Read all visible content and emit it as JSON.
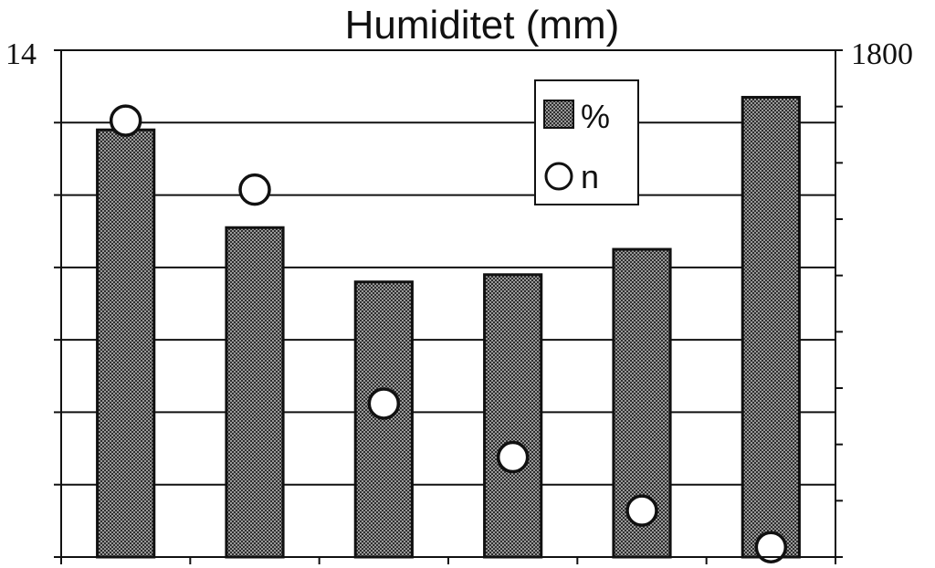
{
  "chart_data": {
    "type": "bar",
    "title": "Humiditet (mm)",
    "categories": [
      "",
      "",
      "",
      "",
      "",
      ""
    ],
    "series": [
      {
        "name": "%",
        "kind": "bar",
        "axis": "left",
        "values": [
          11.8,
          9.1,
          7.6,
          7.8,
          8.5,
          12.7
        ]
      },
      {
        "name": "n",
        "kind": "point",
        "axis": "right",
        "values": [
          1550,
          1305,
          545,
          355,
          165,
          35
        ]
      }
    ],
    "y_left": {
      "min": 0,
      "max": 14,
      "tick_step": 2,
      "printed_ticks": [
        "14"
      ]
    },
    "y_right": {
      "min": 0,
      "max": 1800,
      "tick_step": 200,
      "printed_ticks": [
        "1800"
      ]
    },
    "grid": "horizontal",
    "legend": {
      "position": "top-right",
      "entries": [
        "%",
        "n"
      ]
    },
    "colors": {
      "bar_fill": "#8a8a8a",
      "bar_edge": "#111111",
      "point_fill": "#ffffff",
      "line": "#111111"
    }
  }
}
